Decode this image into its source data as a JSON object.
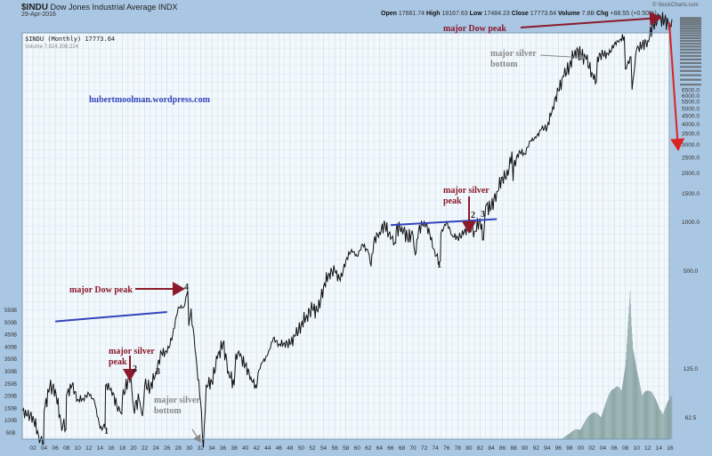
{
  "header": {
    "symbol": "$INDU",
    "name": "Dow Jones Industrial Average INDX",
    "date": "29-Apr-2016",
    "brand": "© StockCharts.com",
    "quote": [
      {
        "label": "Open",
        "value": "17661.74"
      },
      {
        "label": "High",
        "value": "18167.63"
      },
      {
        "label": "Low",
        "value": "17484.23"
      },
      {
        "label": "Close",
        "value": "17773.64"
      },
      {
        "label": "Volume",
        "value": "7.8B"
      },
      {
        "label": "Chg",
        "value": "+88.55 (+0.50%)"
      }
    ],
    "legend_price": "$INDU (Monthly) 17773.64",
    "legend_volume": "Volume 7,824,308,224"
  },
  "chart_data": {
    "type": "line",
    "title": "$INDU Dow Jones Industrial Average INDX",
    "yscale": "log",
    "grid": true,
    "colors": {
      "price": "#111111",
      "volume": "#8fa8a8",
      "trendline": "#3344bb",
      "annotation": "#8b1a2b",
      "annotation_gray": "#888888",
      "arrow_red": "#dd2222"
    },
    "xlim": [
      1900,
      2016.4
    ],
    "ylim": [
      38,
      21000
    ],
    "x_ticks": [
      "02",
      "04",
      "06",
      "08",
      "10",
      "12",
      "14",
      "16",
      "18",
      "20",
      "22",
      "24",
      "26",
      "28",
      "30",
      "32",
      "34",
      "36",
      "38",
      "40",
      "42",
      "44",
      "46",
      "48",
      "50",
      "52",
      "54",
      "56",
      "58",
      "60",
      "62",
      "64",
      "66",
      "68",
      "70",
      "72",
      "74",
      "76",
      "78",
      "80",
      "82",
      "84",
      "86",
      "88",
      "90",
      "92",
      "94",
      "96",
      "98",
      "00",
      "02",
      "04",
      "06",
      "08",
      "10",
      "12",
      "14",
      "16"
    ],
    "y_ticks_right": [
      "62.5",
      "125.0",
      "500.0",
      "1000.0",
      "1500.0",
      "2000.0",
      "2500.0",
      "3000.0",
      "3500.0",
      "4000.0",
      "4500.0",
      "5000.0",
      "5500.0",
      "6000.0",
      "6500.0"
    ],
    "y_ticks_left": [
      "50B",
      "100B",
      "150B",
      "200B",
      "250B",
      "300B",
      "350B",
      "400B",
      "450B",
      "500B",
      "550B"
    ],
    "price": {
      "x": [
        1900,
        1901,
        1902,
        1903,
        1903.9,
        1904,
        1905,
        1906,
        1907,
        1907.9,
        1908,
        1909,
        1910,
        1911,
        1912,
        1913,
        1914,
        1914.9,
        1915,
        1916,
        1917,
        1917.9,
        1918,
        1919,
        1919.5,
        1920,
        1921,
        1921.6,
        1922,
        1923,
        1924,
        1925,
        1926,
        1927,
        1928,
        1929,
        1929.7,
        1929.9,
        1930,
        1930.3,
        1931,
        1932,
        1932.5,
        1933,
        1934,
        1935,
        1936,
        1937,
        1938,
        1938.3,
        1939,
        1940,
        1941,
        1942,
        1942.3,
        1943,
        1944,
        1945,
        1946,
        1947,
        1948,
        1949,
        1950,
        1951,
        1952,
        1953,
        1954,
        1955,
        1956,
        1957,
        1958,
        1959,
        1960,
        1961,
        1962,
        1962.5,
        1963,
        1964,
        1965,
        1966,
        1966.9,
        1967,
        1968,
        1969,
        1970,
        1970.4,
        1971,
        1972,
        1973,
        1974,
        1974.9,
        1975,
        1976,
        1977,
        1978,
        1979,
        1980,
        1981,
        1982,
        1982.6,
        1983,
        1984,
        1985,
        1986,
        1987,
        1987.7,
        1987.9,
        1988,
        1989,
        1990,
        1991,
        1992,
        1993,
        1994,
        1995,
        1996,
        1997,
        1998,
        1999,
        2000,
        2001,
        2002,
        2002.8,
        2003,
        2004,
        2005,
        2006,
        2007,
        2007.8,
        2008,
        2009,
        2009.2,
        2010,
        2011,
        2012,
        2013,
        2014,
        2015,
        2016,
        2016.33
      ],
      "y": [
        70,
        64,
        64,
        49,
        43,
        69,
        96,
        94,
        59,
        53,
        86,
        99,
        81,
        82,
        88,
        79,
        54,
        54,
        99,
        95,
        74,
        66,
        82,
        107,
        118,
        72,
        81,
        64,
        99,
        96,
        120,
        157,
        157,
        202,
        300,
        300,
        381,
        230,
        248,
        294,
        165,
        78,
        41,
        100,
        104,
        144,
        180,
        121,
        99,
        155,
        150,
        131,
        111,
        95,
        119,
        136,
        152,
        193,
        177,
        181,
        177,
        200,
        235,
        269,
        292,
        281,
        404,
        488,
        500,
        436,
        584,
        679,
        616,
        731,
        652,
        535,
        763,
        874,
        969,
        786,
        744,
        905,
        944,
        800,
        839,
        631,
        890,
        1020,
        851,
        616,
        577,
        852,
        1005,
        831,
        805,
        839,
        964,
        875,
        1047,
        777,
        1259,
        1212,
        1547,
        1896,
        1939,
        2722,
        1794,
        2169,
        2753,
        2634,
        3169,
        3301,
        3754,
        3834,
        5117,
        6448,
        7908,
        9181,
        11497,
        10787,
        10022,
        8342,
        7286,
        10454,
        10783,
        10718,
        12463,
        13265,
        13930,
        8776,
        10428,
        6547,
        11578,
        12218,
        13104,
        16577,
        17823,
        17425,
        16466,
        17774
      ]
    },
    "volume_billions": {
      "x": [
        1980,
        1985,
        1990,
        1995,
        1998,
        2000,
        2002,
        2004,
        2006,
        2007,
        2008,
        2008.8,
        2009,
        2009.3,
        2010,
        2011,
        2012,
        2013,
        2014,
        2015,
        2016
      ],
      "y": [
        2,
        5,
        8,
        15,
        40,
        80,
        110,
        150,
        200,
        260,
        320,
        530,
        420,
        330,
        280,
        250,
        200,
        170,
        150,
        160,
        170
      ]
    },
    "annotations": [
      {
        "id": "blog",
        "text": "hubertmoolman.wordpress.com"
      },
      {
        "id": "dow_peak_2000s",
        "text": "major Dow peak"
      },
      {
        "id": "silver_bottom_2000s",
        "lines": [
          "major silver",
          "bottom"
        ]
      },
      {
        "id": "silver_peak_1980",
        "lines": [
          "major silver",
          "peak"
        ]
      },
      {
        "id": "dow_peak_1929",
        "text": "major Dow peak"
      },
      {
        "id": "silver_peak_1919",
        "lines": [
          "major silver",
          "peak"
        ]
      },
      {
        "id": "silver_bottom_1932",
        "lines": [
          "major silver",
          "bottom"
        ]
      },
      {
        "id": "n1_a",
        "text": "1"
      },
      {
        "id": "n2_a",
        "text": "2"
      },
      {
        "id": "n3_a",
        "text": "3"
      },
      {
        "id": "n4_a",
        "text": "4"
      },
      {
        "id": "n1_b",
        "text": "1"
      },
      {
        "id": "n2_b",
        "text": "2"
      },
      {
        "id": "n3_b",
        "text": "3"
      }
    ],
    "trendlines": [
      {
        "from": [
          1906,
          245
        ],
        "to": [
          1926,
          280
        ]
      },
      {
        "from": [
          1966,
          960
        ],
        "to": [
          1985,
          1045
        ]
      }
    ]
  }
}
